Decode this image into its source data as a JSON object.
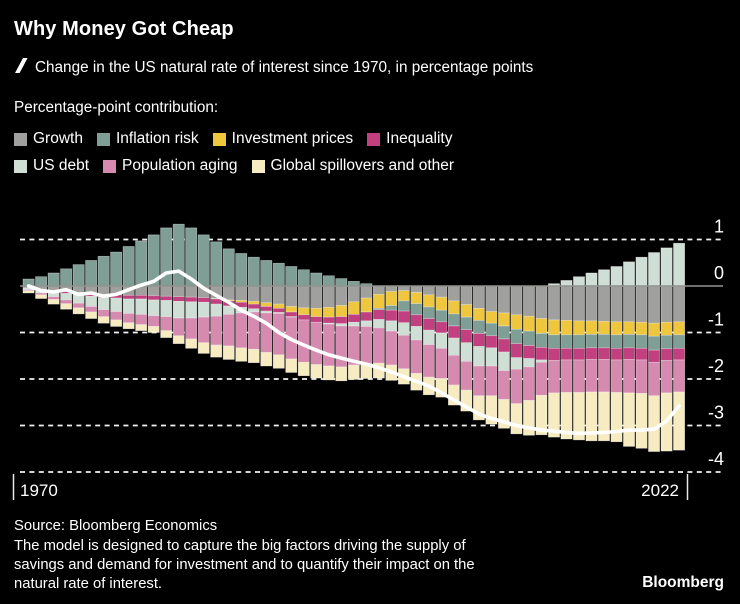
{
  "header": {
    "title": "Why Money Got Cheap",
    "subtitle": "Change in the US natural rate of interest since 1970, in percentage points",
    "legend_heading": "Percentage-point contribution:"
  },
  "legend": {
    "rows": [
      [
        {
          "label": "Growth",
          "color": "#a0a09e"
        },
        {
          "label": "Inflation risk",
          "color": "#7f9f96"
        },
        {
          "label": "Investment prices",
          "color": "#eec73e"
        },
        {
          "label": "Inequality",
          "color": "#c2407f"
        }
      ],
      [
        {
          "label": "US debt",
          "color": "#cfdfd6"
        },
        {
          "label": "Population aging",
          "color": "#d78ab0"
        },
        {
          "label": "Global spillovers and other",
          "color": "#f7ecc1"
        }
      ]
    ]
  },
  "footer": {
    "source": "Source: Bloomberg Economics",
    "note_lines": [
      "The model is designed to capture the big factors driving the supply of",
      "savings and demand for investment and to quantify their impact on the",
      "natural rate of interest."
    ],
    "brand": "Bloomberg"
  },
  "chart_data": {
    "type": "bar",
    "subtype": "stacked-bar-with-total-line",
    "title": "Change in the US natural rate of interest since 1970, in percentage points",
    "ylim": [
      -4.35,
      1.5
    ],
    "y_gridlines": [
      1,
      0,
      -1,
      -2,
      -3,
      -4
    ],
    "x_labels": {
      "left": "1970",
      "right": "2022"
    },
    "grid": {
      "zero_line_color": "#929290",
      "dashed_color": "#f2f2f2",
      "background": "#000000"
    },
    "years": [
      1970,
      1971,
      1972,
      1973,
      1974,
      1975,
      1976,
      1977,
      1978,
      1979,
      1980,
      1981,
      1982,
      1983,
      1984,
      1985,
      1986,
      1987,
      1988,
      1989,
      1990,
      1991,
      1992,
      1993,
      1994,
      1995,
      1996,
      1997,
      1998,
      1999,
      2000,
      2001,
      2002,
      2003,
      2004,
      2005,
      2006,
      2007,
      2008,
      2009,
      2010,
      2011,
      2012,
      2013,
      2014,
      2015,
      2016,
      2017,
      2018,
      2019,
      2020,
      2021,
      2022
    ],
    "series": [
      {
        "key": "growth",
        "name": "Growth",
        "color": "#a0a09e",
        "values": [
          -0.04,
          -0.07,
          -0.1,
          -0.12,
          -0.14,
          -0.16,
          -0.18,
          -0.19,
          -0.2,
          -0.2,
          -0.21,
          -0.22,
          -0.23,
          -0.24,
          -0.25,
          -0.27,
          -0.3,
          -0.31,
          -0.33,
          -0.36,
          -0.39,
          -0.44,
          -0.47,
          -0.48,
          -0.46,
          -0.42,
          -0.34,
          -0.26,
          -0.18,
          -0.12,
          -0.1,
          -0.14,
          -0.19,
          -0.24,
          -0.32,
          -0.4,
          -0.48,
          -0.55,
          -0.58,
          -0.62,
          -0.65,
          -0.7,
          -0.73,
          -0.74,
          -0.75,
          -0.75,
          -0.76,
          -0.77,
          -0.77,
          -0.78,
          -0.8,
          -0.78,
          -0.77
        ]
      },
      {
        "key": "investment_prices",
        "name": "Investment prices",
        "color": "#eec73e",
        "values": [
          0,
          0,
          0,
          0,
          0,
          0,
          0,
          0,
          0,
          0,
          0,
          0,
          0,
          0,
          0,
          -0.01,
          -0.02,
          -0.04,
          -0.06,
          -0.08,
          -0.09,
          -0.12,
          -0.15,
          -0.18,
          -0.21,
          -0.24,
          -0.27,
          -0.3,
          -0.3,
          -0.3,
          -0.22,
          -0.24,
          -0.26,
          -0.28,
          -0.28,
          -0.27,
          -0.26,
          -0.25,
          -0.28,
          -0.31,
          -0.32,
          -0.32,
          -0.32,
          -0.31,
          -0.3,
          -0.29,
          -0.28,
          -0.28,
          -0.27,
          -0.27,
          -0.28,
          -0.28,
          -0.28
        ]
      },
      {
        "key": "inflation_risk",
        "name": "Inflation risk",
        "color": "#7f9f96",
        "values": [
          0.15,
          0.2,
          0.28,
          0.37,
          0.46,
          0.55,
          0.64,
          0.73,
          0.85,
          0.97,
          1.1,
          1.25,
          1.33,
          1.25,
          1.1,
          0.95,
          0.8,
          0.7,
          0.62,
          0.55,
          0.49,
          0.42,
          0.35,
          0.28,
          0.22,
          0.16,
          0.1,
          0.05,
          -0.03,
          -0.1,
          -0.22,
          -0.24,
          -0.25,
          -0.25,
          -0.26,
          -0.27,
          -0.28,
          -0.27,
          -0.28,
          -0.31,
          -0.31,
          -0.3,
          -0.29,
          -0.29,
          -0.29,
          -0.29,
          -0.29,
          -0.29,
          -0.29,
          -0.29,
          -0.3,
          -0.29,
          -0.29
        ]
      },
      {
        "key": "inequality",
        "name": "Inequality",
        "color": "#c2407f",
        "values": [
          -0.01,
          -0.02,
          -0.03,
          -0.04,
          -0.05,
          -0.06,
          -0.07,
          -0.07,
          -0.08,
          -0.08,
          -0.09,
          -0.09,
          -0.1,
          -0.1,
          -0.1,
          -0.11,
          -0.11,
          -0.11,
          -0.1,
          -0.1,
          -0.09,
          -0.1,
          -0.11,
          -0.12,
          -0.13,
          -0.15,
          -0.17,
          -0.19,
          -0.21,
          -0.23,
          -0.25,
          -0.25,
          -0.25,
          -0.24,
          -0.26,
          -0.28,
          -0.28,
          -0.26,
          -0.28,
          -0.3,
          -0.28,
          -0.27,
          -0.26,
          -0.25,
          -0.25,
          -0.25,
          -0.25,
          -0.25,
          -0.25,
          -0.25,
          -0.26,
          -0.25,
          -0.25
        ]
      },
      {
        "key": "us_debt",
        "name": "US debt",
        "color": "#cfdfd6",
        "values": [
          -0.03,
          -0.06,
          -0.1,
          -0.14,
          -0.18,
          -0.22,
          -0.26,
          -0.29,
          -0.31,
          -0.33,
          -0.34,
          -0.35,
          -0.36,
          -0.35,
          -0.32,
          -0.26,
          -0.18,
          -0.12,
          -0.07,
          -0.04,
          -0.02,
          -0.01,
          0,
          0,
          -0.02,
          -0.05,
          -0.08,
          -0.12,
          -0.18,
          -0.22,
          -0.27,
          -0.29,
          -0.31,
          -0.33,
          -0.37,
          -0.4,
          -0.42,
          -0.39,
          -0.4,
          -0.25,
          -0.18,
          -0.05,
          0.05,
          0.12,
          0.2,
          0.28,
          0.35,
          0.42,
          0.52,
          0.62,
          0.72,
          0.82,
          0.92
        ]
      },
      {
        "key": "population_aging",
        "name": "Population aging",
        "color": "#d78ab0",
        "values": [
          -0.02,
          -0.04,
          -0.06,
          -0.08,
          -0.1,
          -0.12,
          -0.15,
          -0.18,
          -0.2,
          -0.22,
          -0.23,
          -0.3,
          -0.38,
          -0.45,
          -0.55,
          -0.62,
          -0.68,
          -0.75,
          -0.8,
          -0.85,
          -0.89,
          -0.9,
          -0.91,
          -0.91,
          -0.9,
          -0.88,
          -0.84,
          -0.8,
          -0.76,
          -0.73,
          -0.72,
          -0.72,
          -0.7,
          -0.65,
          -0.64,
          -0.62,
          -0.64,
          -0.64,
          -0.62,
          -0.74,
          -0.72,
          -0.71,
          -0.7,
          -0.7,
          -0.7,
          -0.7,
          -0.7,
          -0.7,
          -0.72,
          -0.72,
          -0.72,
          -0.7,
          -0.69
        ]
      },
      {
        "key": "global_spillovers",
        "name": "Global spillovers and other",
        "color": "#f7ecc1",
        "values": [
          -0.05,
          -0.08,
          -0.1,
          -0.12,
          -0.13,
          -0.14,
          -0.14,
          -0.14,
          -0.13,
          -0.13,
          -0.13,
          -0.15,
          -0.17,
          -0.2,
          -0.23,
          -0.26,
          -0.29,
          -0.29,
          -0.29,
          -0.29,
          -0.29,
          -0.29,
          -0.29,
          -0.29,
          -0.3,
          -0.3,
          -0.31,
          -0.32,
          -0.32,
          -0.33,
          -0.33,
          -0.36,
          -0.38,
          -0.4,
          -0.43,
          -0.45,
          -0.52,
          -0.61,
          -0.62,
          -0.65,
          -0.75,
          -0.85,
          -0.95,
          -1.0,
          -1.02,
          -1.05,
          -1.05,
          -1.06,
          -1.15,
          -1.18,
          -1.2,
          -1.25,
          -1.25
        ]
      }
    ],
    "total_line": {
      "key": "total",
      "color": "#ffffff",
      "values": [
        0.0,
        -0.1,
        -0.13,
        -0.08,
        -0.18,
        -0.15,
        -0.22,
        -0.18,
        -0.08,
        0.02,
        0.1,
        0.28,
        0.32,
        0.15,
        -0.05,
        -0.2,
        -0.35,
        -0.52,
        -0.65,
        -0.8,
        -1.0,
        -1.15,
        -1.27,
        -1.38,
        -1.48,
        -1.55,
        -1.62,
        -1.68,
        -1.76,
        -1.85,
        -1.95,
        -2.05,
        -2.15,
        -2.3,
        -2.45,
        -2.6,
        -2.75,
        -2.85,
        -2.92,
        -3.0,
        -3.05,
        -3.1,
        -3.12,
        -3.15,
        -3.17,
        -3.16,
        -3.15,
        -3.13,
        -3.1,
        -3.1,
        -3.08,
        -2.9,
        -2.58
      ]
    }
  }
}
